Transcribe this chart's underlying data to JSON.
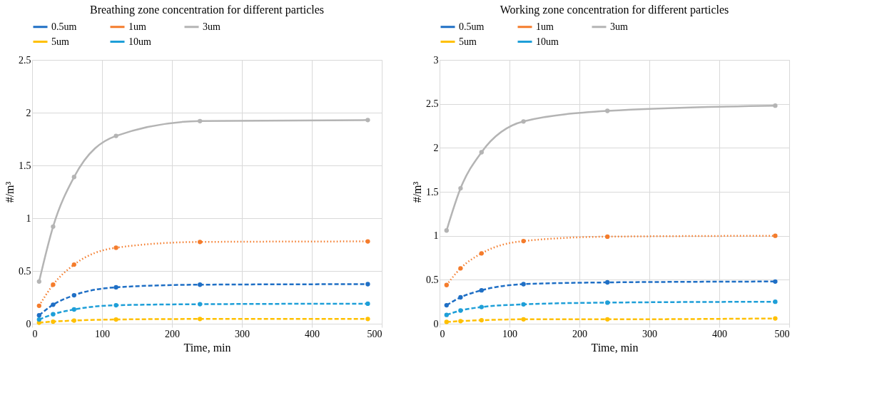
{
  "chart_data": [
    {
      "type": "line",
      "title": "Breathing zone concentration for different particles",
      "xlabel": "Time, min",
      "ylabel": "#/m³",
      "x": [
        10,
        30,
        60,
        120,
        240,
        480
      ],
      "xlim": [
        0,
        500
      ],
      "xticks": [
        0,
        100,
        200,
        300,
        400,
        500
      ],
      "ylim": [
        0,
        2.5
      ],
      "yticks": [
        0,
        0.5,
        1,
        1.5,
        2,
        2.5
      ],
      "grid": true,
      "legend": "top",
      "marker": "circle",
      "series": [
        {
          "name": "0.5um",
          "color": "#1f6fc5",
          "line_style": "dashed",
          "values": [
            0.08,
            0.18,
            0.27,
            0.345,
            0.37,
            0.375
          ]
        },
        {
          "name": "1um",
          "color": "#f47c2c",
          "line_style": "dotted",
          "values": [
            0.17,
            0.37,
            0.56,
            0.72,
            0.775,
            0.78
          ]
        },
        {
          "name": "3um",
          "color": "#b4b4b4",
          "line_style": "solid",
          "values": [
            0.4,
            0.92,
            1.39,
            1.78,
            1.92,
            1.93
          ]
        },
        {
          "name": "5um",
          "color": "#ffc000",
          "line_style": "dashed",
          "values": [
            0.01,
            0.02,
            0.03,
            0.04,
            0.045,
            0.045
          ]
        },
        {
          "name": "10um",
          "color": "#1e9fd8",
          "line_style": "dashed",
          "values": [
            0.04,
            0.09,
            0.135,
            0.175,
            0.185,
            0.19
          ]
        }
      ]
    },
    {
      "type": "line",
      "title": "Working zone concentration for different particles",
      "xlabel": "Time, min",
      "ylabel": "#/m³",
      "x": [
        10,
        30,
        60,
        120,
        240,
        480
      ],
      "xlim": [
        0,
        500
      ],
      "xticks": [
        0,
        100,
        200,
        300,
        400,
        500
      ],
      "ylim": [
        0,
        3
      ],
      "yticks": [
        0,
        0.5,
        1,
        1.5,
        2,
        2.5,
        3
      ],
      "grid": true,
      "legend": "top",
      "marker": "circle",
      "series": [
        {
          "name": "0.5um",
          "color": "#1f6fc5",
          "line_style": "dashed",
          "values": [
            0.21,
            0.3,
            0.38,
            0.45,
            0.47,
            0.48
          ]
        },
        {
          "name": "1um",
          "color": "#f47c2c",
          "line_style": "dotted",
          "values": [
            0.44,
            0.63,
            0.8,
            0.94,
            0.99,
            1.0
          ]
        },
        {
          "name": "3um",
          "color": "#b4b4b4",
          "line_style": "solid",
          "values": [
            1.06,
            1.54,
            1.95,
            2.3,
            2.42,
            2.48
          ]
        },
        {
          "name": "5um",
          "color": "#ffc000",
          "line_style": "dashed",
          "values": [
            0.02,
            0.03,
            0.04,
            0.05,
            0.05,
            0.06
          ]
        },
        {
          "name": "10um",
          "color": "#1e9fd8",
          "line_style": "dashed",
          "values": [
            0.1,
            0.15,
            0.19,
            0.22,
            0.24,
            0.25
          ]
        }
      ]
    }
  ]
}
